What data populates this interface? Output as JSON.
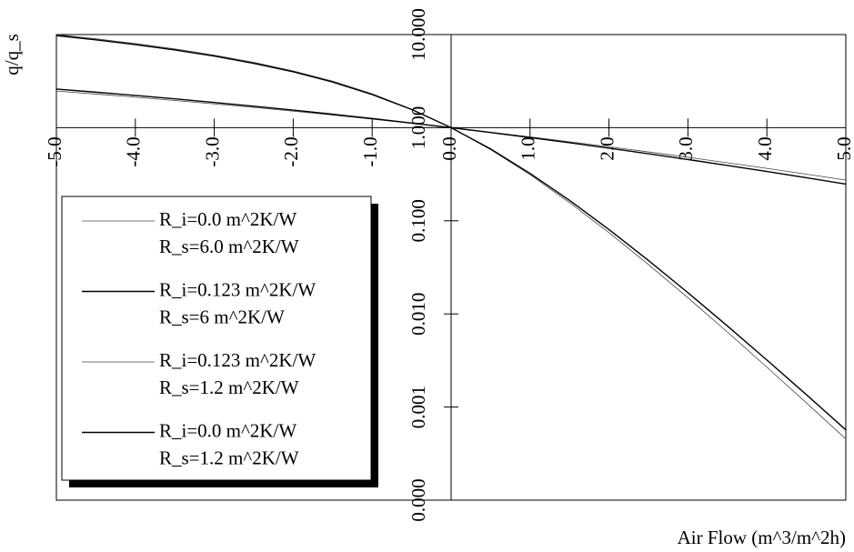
{
  "chart_data": {
    "type": "line",
    "ylabel": "q/q_s",
    "xlabel": "Air Flow (m^3/m^2h)",
    "ylog": true,
    "xlim": [
      -5,
      5
    ],
    "ylim": [
      0.0001,
      10
    ],
    "xticks": [
      {
        "value": -5,
        "label": "-5.0"
      },
      {
        "value": -4,
        "label": "-4.0"
      },
      {
        "value": -3,
        "label": "-3.0"
      },
      {
        "value": -2,
        "label": "-2.0"
      },
      {
        "value": -1,
        "label": "-1.0"
      },
      {
        "value": 0,
        "label": "0.0"
      },
      {
        "value": 1,
        "label": "1.0"
      },
      {
        "value": 2,
        "label": "2.0"
      },
      {
        "value": 3,
        "label": "3.0"
      },
      {
        "value": 4,
        "label": "4.0"
      },
      {
        "value": 5,
        "label": "5.0"
      }
    ],
    "yticks": [
      {
        "value": 10,
        "label": "10.000"
      },
      {
        "value": 1,
        "label": "1.000"
      },
      {
        "value": 0.1,
        "label": "0.100"
      },
      {
        "value": 0.01,
        "label": "0.010"
      },
      {
        "value": 0.001,
        "label": "0.001"
      },
      {
        "value": 0.0001,
        "label": "0.000"
      }
    ],
    "x": [
      -5,
      -4.5,
      -4,
      -3.5,
      -3,
      -2.5,
      -2,
      -1.5,
      -1,
      -0.5,
      0,
      0.5,
      1,
      1.5,
      2,
      2.5,
      3,
      3.5,
      4,
      4.5,
      5
    ],
    "series": [
      {
        "name": "R_i=0.0 m^2K/W\nR_s=6.0 m^2K/W",
        "color": "#444444",
        "values": [
          10.0,
          9.0,
          8.0,
          7.01,
          6.01,
          5.03,
          4.07,
          3.16,
          2.31,
          1.58,
          1,
          0.582,
          0.313,
          0.157,
          0.0746,
          0.0339,
          0.0149,
          0.00639,
          0.00268,
          0.00111,
          0.000454
        ]
      },
      {
        "name": "R_i=0.123 m^2K/W\nR_s=6 m^2K/W",
        "color": "#000000",
        "values": [
          9.75,
          8.78,
          7.8,
          6.83,
          5.87,
          4.91,
          3.98,
          3.09,
          2.27,
          1.57,
          1,
          0.591,
          0.323,
          0.166,
          0.0806,
          0.0375,
          0.0169,
          0.00742,
          0.0032,
          0.00136,
          0.000569
        ]
      },
      {
        "name": "R_i=0.123 m^2K/W\nR_s=1.2 m^2K/W",
        "color": "#444444",
        "values": [
          2.474,
          2.297,
          2.126,
          1.96,
          1.801,
          1.649,
          1.504,
          1.366,
          1.236,
          1.114,
          1,
          0.894,
          0.796,
          0.706,
          0.624,
          0.549,
          0.481,
          0.42,
          0.366,
          0.317,
          0.274
        ]
      },
      {
        "name": "R_i=0.0 m^2K/W\nR_s=1.2 m^2K/W",
        "color": "#000000",
        "values": [
          2.598,
          2.405,
          2.219,
          2.038,
          1.865,
          1.7,
          1.543,
          1.394,
          1.253,
          1.122,
          1,
          0.887,
          0.783,
          0.689,
          0.603,
          0.525,
          0.455,
          0.393,
          0.339,
          0.29,
          0.248
        ]
      }
    ]
  }
}
